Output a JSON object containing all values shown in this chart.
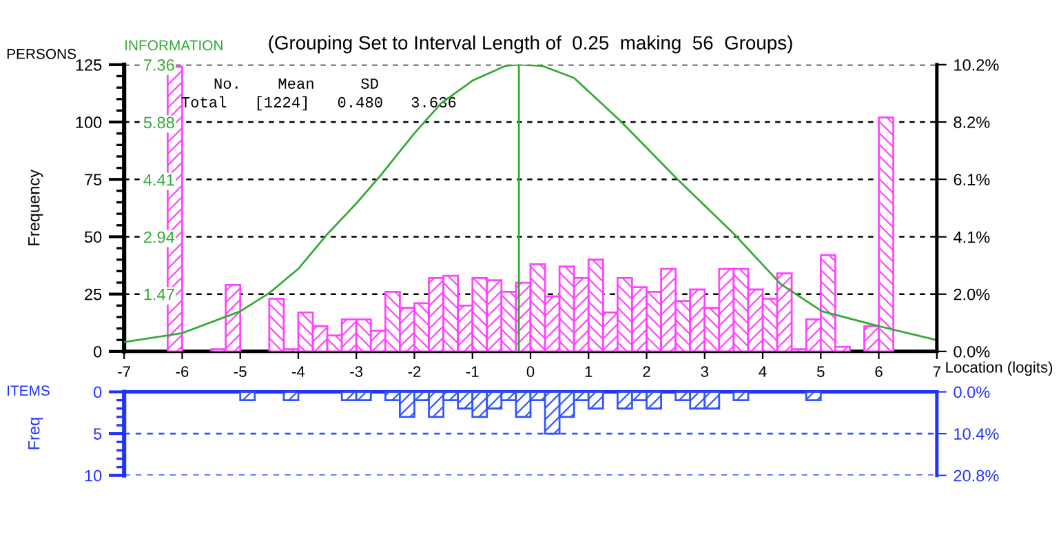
{
  "chart_data": [
    {
      "type": "histogram",
      "title": "(Grouping Set to Interval Length of  0.25  making  56  Groups)",
      "xlabel": "Location (logits)",
      "ylabel": "Frequency",
      "y2label": "INFORMATION",
      "annotations": [
        "PERSONS",
        "No.    Mean     SD",
        "Total   [1224]   0.480   3.636"
      ],
      "bins": [
        -7,
        -6.75,
        -6.5,
        -6.25,
        -6,
        -5.75,
        -5.5,
        -5.25,
        -5,
        -4.75,
        -4.5,
        -4.25,
        -4,
        -3.75,
        -3.5,
        -3.25,
        -3,
        -2.75,
        -2.5,
        -2.25,
        -2,
        -1.75,
        -1.5,
        -1.25,
        -1,
        -0.75,
        -0.5,
        -0.25,
        0,
        0.25,
        0.5,
        0.75,
        1,
        1.25,
        1.5,
        1.75,
        2,
        2.25,
        2.5,
        2.75,
        3,
        3.25,
        3.5,
        3.75,
        4,
        4.25,
        4.5,
        4.75,
        5,
        5.25,
        5.5,
        5.75,
        6,
        6.25,
        6.5,
        6.75,
        7
      ],
      "series": [
        {
          "color": "#ff44ff",
          "values": [
            null,
            null,
            null,
            124,
            null,
            null,
            1,
            29,
            null,
            null,
            23,
            1,
            17,
            11,
            7,
            14,
            14,
            9,
            26,
            19,
            21,
            32,
            33,
            20,
            32,
            31,
            26,
            30,
            38,
            24,
            37,
            32,
            40,
            17,
            32,
            28,
            26,
            36,
            22,
            27,
            19,
            36,
            36,
            27,
            23,
            34,
            1,
            14,
            42,
            2,
            null,
            11,
            102,
            null,
            null,
            null
          ]
        },
        {
          "type": "line",
          "axis": "y2",
          "color": "#33aa33",
          "x": [
            -7,
            -6,
            -5,
            -4.5,
            -4,
            -3.5,
            -3,
            -2.57,
            -2,
            -1.54,
            -1,
            -0.43,
            -0.2,
            0.2,
            0.75,
            1.54,
            2.53,
            3.51,
            4.31,
            5.02,
            6.05,
            7
          ],
          "values": [
            0.24,
            0.47,
            1.03,
            1.5,
            2.12,
            3.01,
            3.8,
            4.54,
            5.6,
            6.37,
            6.95,
            7.33,
            7.36,
            7.33,
            7.02,
            5.93,
            4.42,
            3.01,
            1.73,
            1.03,
            0.63,
            0.29
          ]
        }
      ],
      "xlim": [
        -7,
        7
      ],
      "xticks": [
        -7,
        -6,
        -5,
        -4,
        -3,
        -2,
        -1,
        0,
        1,
        2,
        3,
        4,
        5,
        6,
        7
      ],
      "ylim": [
        0,
        125
      ],
      "yticks": [
        0,
        {
          "value": 5,
          "label": null
        },
        {
          "value": 10,
          "label": null
        },
        {
          "value": 15,
          "label": null
        },
        {
          "value": 20,
          "label": null
        },
        25,
        {
          "value": 30,
          "label": null
        },
        {
          "value": 35,
          "label": null
        },
        {
          "value": 40,
          "label": null
        },
        {
          "value": 45,
          "label": null
        },
        50,
        {
          "value": 55,
          "label": null
        },
        {
          "value": 60,
          "label": null
        },
        {
          "value": 65,
          "label": null
        },
        {
          "value": 70,
          "label": null
        },
        75,
        {
          "value": 80,
          "label": null
        },
        {
          "value": 85,
          "label": null
        },
        {
          "value": 90,
          "label": null
        },
        {
          "value": 95,
          "label": null
        },
        100,
        {
          "value": 105,
          "label": null
        },
        {
          "value": 110,
          "label": null
        },
        {
          "value": 115,
          "label": null
        },
        {
          "value": 120,
          "label": null
        },
        125
      ],
      "y2lim": [
        0,
        7.36
      ],
      "y2ticks": [
        1.47,
        2.94,
        4.41,
        5.88,
        7.36
      ],
      "y3lim": [
        0,
        10.21
      ],
      "y3ticks": [
        {
          "value": 0,
          "label": "0.0%"
        },
        {
          "value": 2.04,
          "label": "2.0%"
        },
        {
          "value": 4.08,
          "label": "4.1%"
        },
        {
          "value": 6.13,
          "label": "6.1%"
        },
        {
          "value": 8.17,
          "label": "8.2%"
        },
        {
          "value": 10.21,
          "label": "10.2%"
        }
      ],
      "grid": "y",
      "ref_lines": [
        {
          "axis": "x",
          "value": -0.2,
          "color": "#33aa33"
        }
      ]
    },
    {
      "type": "histogram",
      "ylabel": "Freq",
      "annotations": [
        "ITEMS"
      ],
      "bins": [
        -7,
        -6.75,
        -6.5,
        -6.25,
        -6,
        -5.75,
        -5.5,
        -5.25,
        -5,
        -4.75,
        -4.5,
        -4.25,
        -4,
        -3.75,
        -3.5,
        -3.25,
        -3,
        -2.75,
        -2.5,
        -2.25,
        -2,
        -1.75,
        -1.5,
        -1.25,
        -1,
        -0.75,
        -0.5,
        -0.25,
        0,
        0.25,
        0.5,
        0.75,
        1,
        1.25,
        1.5,
        1.75,
        2,
        2.25,
        2.5,
        2.75,
        3,
        3.25,
        3.5,
        3.75,
        4,
        4.25,
        4.5,
        4.75,
        5,
        5.25,
        5.5,
        5.75,
        6,
        6.25,
        6.5,
        6.75,
        7
      ],
      "series": [
        {
          "color": "#3355ff",
          "values": [
            null,
            null,
            null,
            null,
            null,
            null,
            null,
            null,
            1,
            null,
            null,
            1,
            null,
            null,
            null,
            1,
            1,
            null,
            1,
            3,
            1,
            3,
            1,
            2,
            3,
            2,
            1,
            3,
            1,
            5,
            3,
            1,
            2,
            null,
            2,
            1,
            2,
            null,
            1,
            2,
            2,
            null,
            1,
            null,
            null,
            null,
            null,
            1,
            null,
            null,
            null,
            null,
            null,
            null,
            null,
            null
          ]
        }
      ],
      "xlim": [
        -7,
        7
      ],
      "ylim": [
        10,
        0
      ],
      "yticks": [
        0,
        {
          "value": 1,
          "label": null
        },
        {
          "value": 2,
          "label": null
        },
        {
          "value": 3,
          "label": null
        },
        {
          "value": 4,
          "label": null
        },
        5,
        {
          "value": 6,
          "label": null
        },
        {
          "value": 7,
          "label": null
        },
        {
          "value": 8,
          "label": null
        },
        {
          "value": 9,
          "label": null
        },
        10
      ],
      "y2lim": [
        20.8,
        0
      ],
      "y2ticks": [
        {
          "value": 0,
          "label": "0.0%"
        },
        {
          "value": 10.4,
          "label": "10.4%"
        },
        {
          "value": 20.8,
          "label": "20.8%"
        }
      ],
      "ref_lines": [
        {
          "axis": "y",
          "value": 5,
          "color": "#3355ff",
          "line_style": "dashed"
        },
        {
          "axis": "y",
          "value": 10,
          "color": "#3355ff",
          "line_style": "dashed"
        }
      ],
      "tick_labels": "y"
    }
  ]
}
